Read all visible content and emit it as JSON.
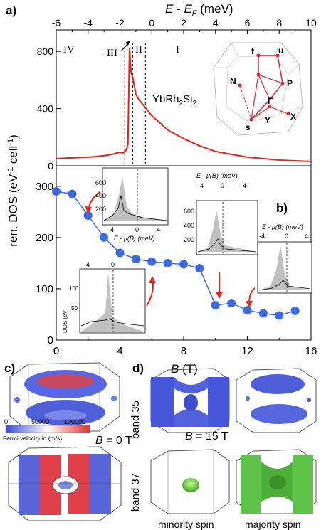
{
  "panel_a": {
    "label": "a)",
    "top_axis_label": "E - E",
    "top_axis_sub": "F",
    "top_axis_unit": " (meV)",
    "top_ticks": [
      "-6",
      "-4",
      "-2",
      "0",
      "2",
      "4",
      "6",
      "8",
      "10"
    ],
    "regions": [
      "IV",
      "III",
      "II",
      "I"
    ],
    "compound": "YbRh",
    "compound_sub": "2",
    "compound_rest": "Si",
    "compound_sub2": "2",
    "bz_labels": [
      "f",
      "u",
      "N",
      "P",
      "Γ",
      "s",
      "Y",
      "X"
    ],
    "left_ticks": [
      "0",
      "400",
      "800"
    ]
  },
  "y_axis_label": "ren. DOS (eV",
  "y_axis_sup1": "-1",
  "y_axis_mid": " cell",
  "y_axis_sup2": "-1",
  "y_axis_end": ")",
  "panel_b": {
    "label": "b)",
    "x_label": "B",
    "x_unit": " (T)",
    "x_ticks": [
      "0",
      "4",
      "8",
      "12",
      "16"
    ],
    "y_ticks": [
      "0",
      "100",
      "200",
      "300"
    ],
    "inset1": {
      "x_label": "E - μ(B) (meV)",
      "ticks_x": [
        "-4",
        "0",
        "4"
      ],
      "ticks_y": [
        "200",
        "400",
        "600"
      ]
    },
    "inset2": {
      "x_label": "E - μ(B) (meV)",
      "ticks_x": [
        "-4",
        "0",
        "4"
      ],
      "ticks_y": [
        "200",
        "400",
        "600"
      ]
    },
    "inset3": {
      "x_label": "E - μ(B) (meV)",
      "ticks_x": [
        "-4",
        "0",
        "4"
      ]
    },
    "inset4": {
      "y_label": "DOS (eV",
      "ticks_x": [
        "-4",
        "0"
      ],
      "ticks_y": [
        "50",
        "100"
      ]
    }
  },
  "panel_c": {
    "label": "c)",
    "field_label": "B = 0 T",
    "colorbar_ticks": [
      "0",
      "50000",
      "100000"
    ],
    "colorbar_label": "Fermi velocity in (m/s)"
  },
  "panel_d": {
    "label": "d)",
    "band1": "band 35",
    "band2": "band 37",
    "field_label": "B = 15 T",
    "spin1": "minority spin",
    "spin2": "majority spin"
  },
  "chart_data": [
    {
      "type": "line",
      "xlabel": "E - E_F (meV)",
      "ylabel": "ren. DOS (eV^-1 cell^-1)",
      "xlim": [
        -6,
        10
      ],
      "ylim": [
        0,
        950
      ],
      "series": [
        {
          "x": [
            -6,
            -5,
            -4,
            -3,
            -2.5,
            -2,
            -1.8,
            -1.6,
            -1.5,
            -1.4,
            -1.3,
            -1.2,
            -1.1,
            -1.0,
            -0.8,
            -0.5,
            0,
            1,
            2,
            3,
            4,
            6,
            8,
            10
          ],
          "y": [
            50,
            55,
            60,
            70,
            80,
            95,
            90,
            110,
            150,
            820,
            650,
            620,
            560,
            500,
            460,
            420,
            350,
            250,
            190,
            140,
            100,
            60,
            40,
            30
          ]
        }
      ]
    },
    {
      "type": "line",
      "xlabel": "B (T)",
      "ylabel": "ren. DOS (eV^-1 cell^-1)",
      "xlim": [
        0,
        16
      ],
      "ylim": [
        0,
        340
      ],
      "series": [
        {
          "x": [
            0,
            1,
            2,
            3,
            4,
            5,
            6,
            7,
            8,
            9,
            10,
            11,
            12,
            13,
            14,
            15
          ],
          "y": [
            290,
            285,
            243,
            200,
            170,
            158,
            153,
            150,
            148,
            140,
            68,
            72,
            58,
            52,
            48,
            57
          ]
        }
      ]
    }
  ]
}
